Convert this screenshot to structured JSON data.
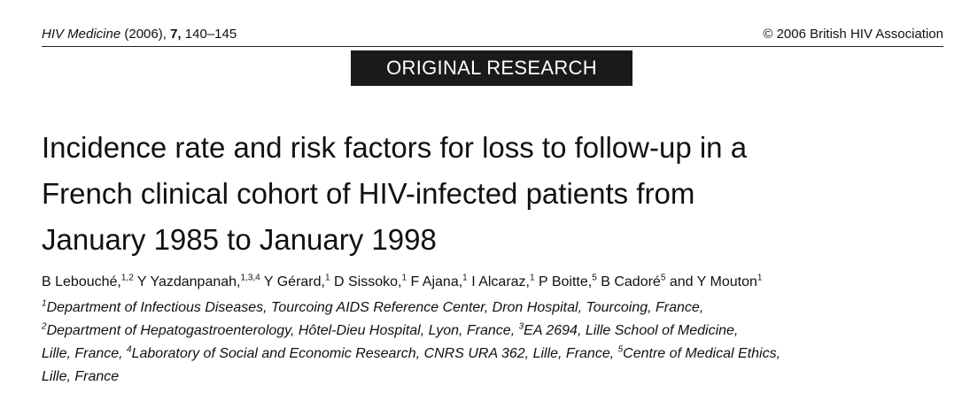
{
  "header": {
    "journal_name": "HIV Medicine",
    "year": "(2006),",
    "volume": "7,",
    "pages": "140–145",
    "copyright": "© 2006 British HIV Association"
  },
  "banner": {
    "label": "ORIGINAL RESEARCH"
  },
  "title": {
    "line1": "Incidence rate and risk factors for loss to follow-up in a",
    "line2": "French clinical cohort of HIV-infected patients from",
    "line3": "January 1985 to January 1998"
  },
  "authors": [
    {
      "name": "B Lebouché,",
      "sup": "1,2"
    },
    {
      "name": "Y Yazdanpanah,",
      "sup": "1,3,4"
    },
    {
      "name": "Y Gérard,",
      "sup": "1"
    },
    {
      "name": "D Sissoko,",
      "sup": "1"
    },
    {
      "name": "F Ajana,",
      "sup": "1"
    },
    {
      "name": "I Alcaraz,",
      "sup": "1"
    },
    {
      "name": "P Boitte,",
      "sup": "5"
    },
    {
      "name": "B Cadoré",
      "sup": "5"
    },
    {
      "name": "and Y Mouton",
      "sup": "1"
    }
  ],
  "affiliations": {
    "line1": {
      "sup1": "1",
      "text1": "Department of Infectious Diseases, Tourcoing AIDS Reference Center, Dron Hospital, Tourcoing, France,"
    },
    "line2": {
      "sup1": "2",
      "text1": "Department of Hepatogastroenterology, Hôtel-Dieu Hospital, Lyon, France, ",
      "sup2": "3",
      "text2": "EA 2694, Lille School of Medicine,"
    },
    "line3": {
      "text0": "Lille, France, ",
      "sup1": "4",
      "text1": "Laboratory of Social and Economic Research, CNRS URA 362, Lille, France, ",
      "sup2": "5",
      "text2": "Centre of Medical Ethics,"
    },
    "line4": {
      "text0": "Lille, France"
    }
  }
}
